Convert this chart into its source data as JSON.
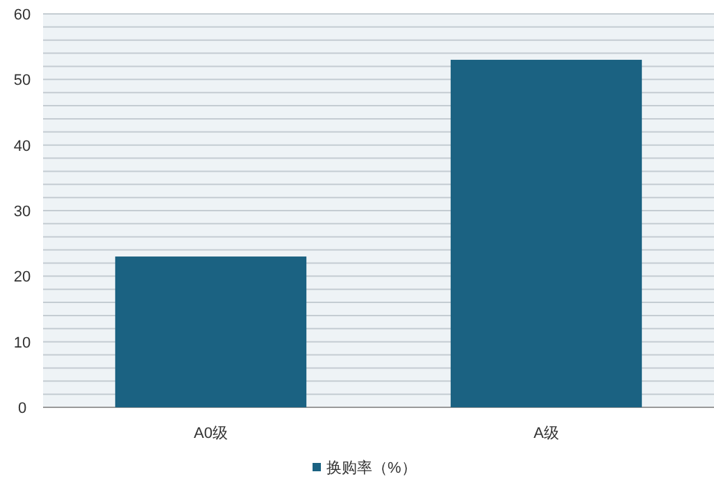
{
  "chart_data": {
    "type": "bar",
    "categories": [
      "A0级",
      "A级"
    ],
    "series": [
      {
        "name": "换购率（%）",
        "color": "#1b6282",
        "values": [
          23,
          53
        ]
      }
    ],
    "ylim": [
      0,
      60
    ],
    "yticks": [
      0,
      {
        "value": 2,
        "label": null
      },
      {
        "value": 4,
        "label": null
      },
      {
        "value": 6,
        "label": null
      },
      {
        "value": 8,
        "label": null
      },
      10,
      {
        "value": 12,
        "label": null
      },
      {
        "value": 14,
        "label": null
      },
      {
        "value": 16,
        "label": null
      },
      {
        "value": 18,
        "label": null
      },
      20,
      {
        "value": 22,
        "label": null
      },
      {
        "value": 24,
        "label": null
      },
      {
        "value": 26,
        "label": null
      },
      {
        "value": 28,
        "label": null
      },
      30,
      {
        "value": 32,
        "label": null
      },
      {
        "value": 34,
        "label": null
      },
      {
        "value": 36,
        "label": null
      },
      {
        "value": 38,
        "label": null
      },
      40,
      {
        "value": 42,
        "label": null
      },
      {
        "value": 44,
        "label": null
      },
      {
        "value": 46,
        "label": null
      },
      {
        "value": 48,
        "label": null
      },
      50,
      {
        "value": 52,
        "label": null
      },
      {
        "value": 54,
        "label": null
      },
      {
        "value": 56,
        "label": null
      },
      {
        "value": 58,
        "label": null
      },
      60
    ],
    "grid": "y",
    "legend": "bottom"
  }
}
